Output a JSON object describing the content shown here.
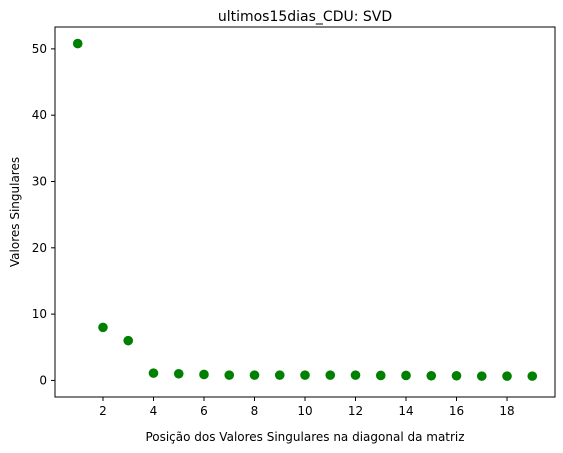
{
  "chart_data": {
    "type": "scatter",
    "title": "ultimos15dias_CDU: SVD",
    "xlabel": "Posição dos Valores Singulares na diagonal da matriz",
    "ylabel": "Valores Singulares",
    "xlim": [
      0.1,
      19.9
    ],
    "ylim": [
      -2.5,
      53.3
    ],
    "xticks": [
      2,
      4,
      6,
      8,
      10,
      12,
      14,
      16,
      18
    ],
    "yticks": [
      0,
      10,
      20,
      30,
      40,
      50
    ],
    "grid": false,
    "series": [
      {
        "color": "#008000",
        "marker": "circle",
        "x": [
          1,
          2,
          3,
          4,
          5,
          6,
          7,
          8,
          9,
          10,
          11,
          12,
          13,
          14,
          15,
          16,
          17,
          18,
          19
        ],
        "y": [
          50.8,
          8.0,
          6.0,
          1.1,
          1.0,
          0.9,
          0.8,
          0.8,
          0.8,
          0.8,
          0.8,
          0.8,
          0.75,
          0.75,
          0.7,
          0.7,
          0.65,
          0.65,
          0.65
        ]
      }
    ]
  }
}
